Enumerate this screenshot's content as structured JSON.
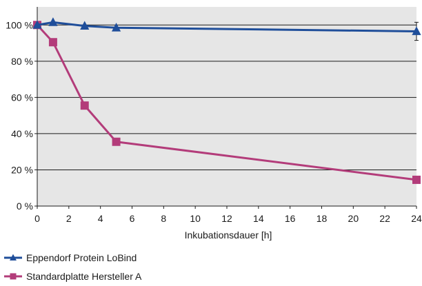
{
  "chart_data": {
    "type": "line",
    "xlabel": "Inkubationsdauer [h]",
    "ylabel": "",
    "xlim": [
      0,
      24
    ],
    "ylim": [
      0,
      110
    ],
    "x_ticks": [
      0,
      2,
      4,
      6,
      8,
      10,
      12,
      14,
      16,
      18,
      20,
      22,
      24
    ],
    "y_ticks": [
      0,
      20,
      40,
      60,
      80,
      100
    ],
    "y_tick_labels": [
      "0 %",
      "20 %",
      "40 %",
      "60 %",
      "80 %",
      "100 %"
    ],
    "grid": "horizontal",
    "legend_position": "bottom-left",
    "plot_background": "#e6e6e6",
    "series": [
      {
        "name": "Eppendorf Protein LoBind",
        "color": "#1f4e9a",
        "marker": "triangle",
        "x": [
          0,
          1,
          3,
          5,
          24
        ],
        "y": [
          100,
          101.5,
          99.5,
          98.5,
          96.5
        ],
        "error": [
          0,
          0,
          0,
          0,
          5
        ]
      },
      {
        "name": "Standardplatte Hersteller A",
        "color": "#b33c7a",
        "marker": "square",
        "x": [
          0,
          1,
          3,
          5,
          24
        ],
        "y": [
          100,
          90.5,
          55.5,
          35.5,
          14.5
        ],
        "error": [
          0,
          0,
          0,
          0,
          0
        ]
      }
    ]
  }
}
